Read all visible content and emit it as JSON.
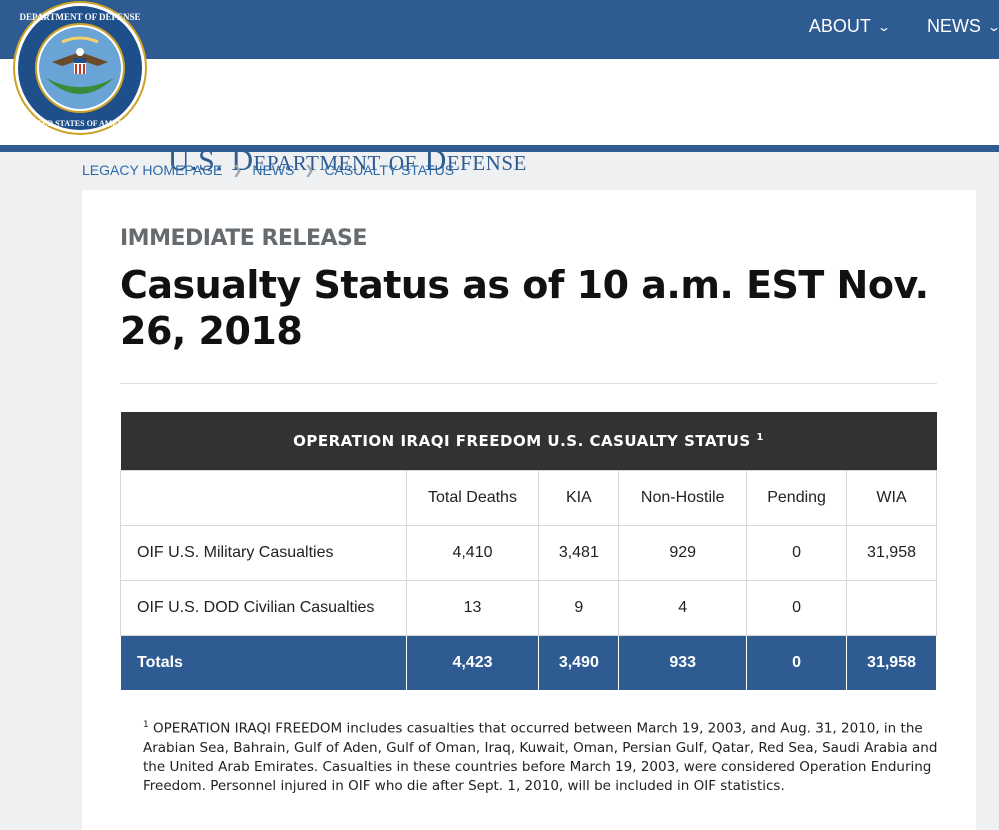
{
  "nav": {
    "items": [
      {
        "label": "ABOUT"
      },
      {
        "label": "NEWS"
      }
    ]
  },
  "site": {
    "title": "U.S. Department of Defense",
    "seal_text": "DEPARTMENT OF DEFENSE · UNITED STATES OF AMERICA"
  },
  "breadcrumb": [
    "LEGACY HOMEPAGE",
    "NEWS",
    "CASUALTY STATUS"
  ],
  "article": {
    "kicker": "IMMEDIATE RELEASE",
    "title": "Casualty Status as of 10 a.m. EST Nov. 26, 2018"
  },
  "table": {
    "caption": "OPERATION IRAQI FREEDOM U.S. CASUALTY STATUS",
    "caption_note": "1",
    "headers": [
      "",
      "Total Deaths",
      "KIA",
      "Non-Hostile",
      "Pending",
      "WIA"
    ],
    "rows": [
      {
        "label": "OIF U.S. Military Casualties",
        "cells": [
          "4,410",
          "3,481",
          "929",
          "0",
          "31,958"
        ]
      },
      {
        "label": "OIF U.S. DOD Civilian Casualties",
        "cells": [
          "13",
          "9",
          "4",
          "0",
          ""
        ]
      }
    ],
    "totals": {
      "label": "Totals",
      "cells": [
        "4,423",
        "3,490",
        "933",
        "0",
        "31,958"
      ]
    }
  },
  "footnote": {
    "marker": "1",
    "text": "OPERATION IRAQI FREEDOM includes casualties that occurred between March 19, 2003, and Aug. 31, 2010, in the Arabian Sea, Bahrain, Gulf of Aden, Gulf of Oman, Iraq, Kuwait, Oman, Persian Gulf, Qatar, Red Sea, Saudi Arabia and the United Arab Emirates. Casualties in these countries before March 19, 2003, were considered Operation Enduring Freedom. Personnel injured in OIF who die after Sept. 1, 2010, will be included in OIF statistics."
  },
  "colors": {
    "brand_blue": "#2e5b91",
    "caption_bg": "#323232"
  }
}
